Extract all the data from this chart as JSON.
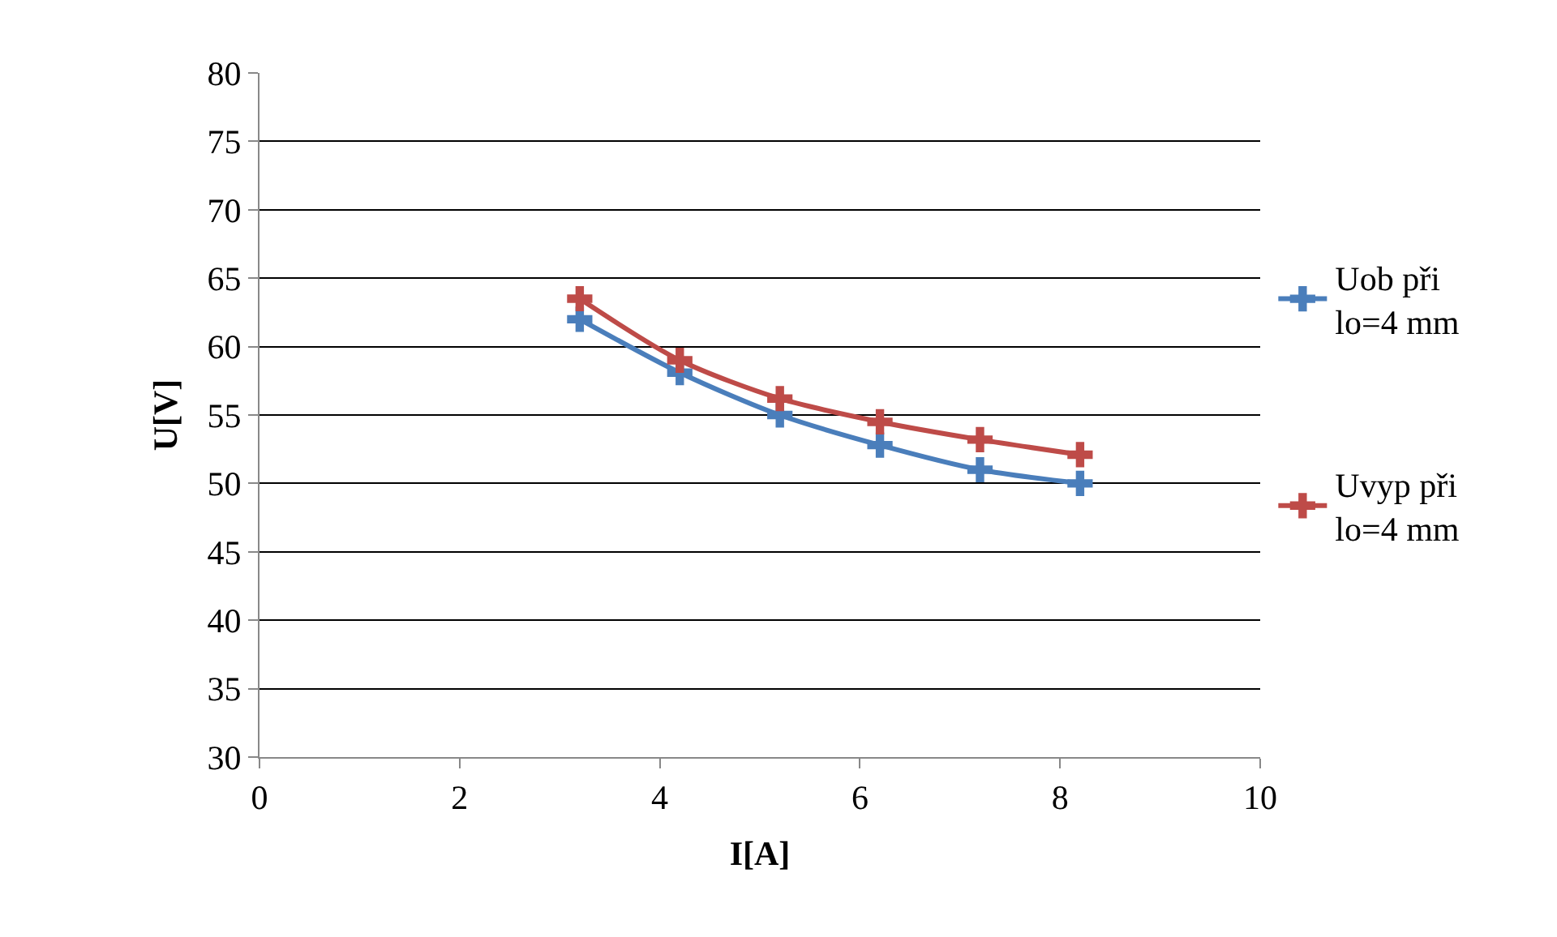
{
  "chart_data": {
    "type": "line",
    "xlabel": "I[A]",
    "ylabel": "U[V]",
    "xlim": [
      0,
      10
    ],
    "xticks": [
      0,
      2,
      4,
      6,
      8,
      10
    ],
    "ylim": [
      30,
      80
    ],
    "yticks": [
      30,
      35,
      40,
      45,
      50,
      55,
      60,
      65,
      70,
      75,
      80
    ],
    "grid": "y",
    "legend": "right",
    "marker": "cross",
    "line_style": "solid",
    "series": [
      {
        "name": "Uob při lo=4 mm",
        "color": "#4a7ebb",
        "x": [
          3.2,
          4.2,
          5.2,
          6.2,
          7.2,
          8.2
        ],
        "values": [
          62.0,
          58.1,
          55.0,
          52.8,
          51.0,
          50.0
        ]
      },
      {
        "name": "Uvyp při lo=4 mm",
        "color": "#be4b48",
        "x": [
          3.2,
          4.2,
          5.2,
          6.2,
          7.2,
          8.2
        ],
        "values": [
          63.5,
          59.0,
          56.2,
          54.5,
          53.2,
          52.1
        ]
      }
    ]
  }
}
